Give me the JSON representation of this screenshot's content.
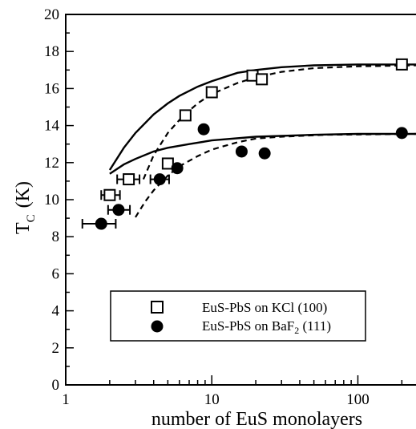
{
  "chart_data": {
    "type": "scatter",
    "x_scale": "log",
    "xlim": [
      1,
      250
    ],
    "ylim": [
      0,
      20
    ],
    "xlabel": "number of EuS monolayers",
    "ylabel_main": "T",
    "ylabel_sub": "C",
    "ylabel_unit": "(K)",
    "x_ticks": [
      {
        "value": 1,
        "label": "1"
      },
      {
        "value": 10,
        "label": "10"
      },
      {
        "value": 100,
        "label": "100"
      }
    ],
    "y_ticks": [
      0,
      2,
      4,
      6,
      8,
      10,
      12,
      14,
      16,
      18,
      20
    ],
    "grid": false,
    "legend_placement": "lower-right",
    "series": [
      {
        "name": "EuS-PbS on KCl (100)",
        "marker": "open-square",
        "points": [
          {
            "x": 2.0,
            "y": 10.25,
            "xerr": [
              1.75,
              2.35
            ]
          },
          {
            "x": 2.7,
            "y": 11.1,
            "xerr": [
              2.25,
              3.2
            ]
          },
          {
            "x": 5.0,
            "y": 11.95
          },
          {
            "x": 6.6,
            "y": 14.55
          },
          {
            "x": 10,
            "y": 15.8
          },
          {
            "x": 19,
            "y": 16.7
          },
          {
            "x": 22,
            "y": 16.5
          },
          {
            "x": 200,
            "y": 17.3
          }
        ]
      },
      {
        "name_prefix": "EuS-PbS on BaF",
        "name_sub": "2",
        "name_suffix": " (111)",
        "marker": "filled-circle",
        "points": [
          {
            "x": 1.75,
            "y": 8.7,
            "xerr": [
              1.3,
              2.2
            ]
          },
          {
            "x": 2.3,
            "y": 9.45,
            "xerr": [
              1.95,
              2.75
            ]
          },
          {
            "x": 4.4,
            "y": 11.1,
            "xerr": [
              3.8,
              5.1
            ]
          },
          {
            "x": 5.8,
            "y": 11.7
          },
          {
            "x": 8.8,
            "y": 13.8
          },
          {
            "x": 16,
            "y": 12.6
          },
          {
            "x": 23,
            "y": 12.5
          },
          {
            "x": 200,
            "y": 13.6
          }
        ]
      }
    ],
    "curves": [
      {
        "style": "solid",
        "points": [
          [
            2.0,
            11.6
          ],
          [
            2.5,
            12.8
          ],
          [
            3,
            13.6
          ],
          [
            4,
            14.6
          ],
          [
            5,
            15.2
          ],
          [
            6,
            15.6
          ],
          [
            8,
            16.1
          ],
          [
            10,
            16.4
          ],
          [
            15,
            16.85
          ],
          [
            20,
            17.0
          ],
          [
            30,
            17.15
          ],
          [
            50,
            17.25
          ],
          [
            100,
            17.3
          ],
          [
            250,
            17.3
          ]
        ]
      },
      {
        "style": "dashed",
        "points": [
          [
            3.4,
            11.1
          ],
          [
            4,
            12.4
          ],
          [
            5,
            13.6
          ],
          [
            6,
            14.3
          ],
          [
            7,
            14.8
          ],
          [
            8,
            15.2
          ],
          [
            10,
            15.7
          ],
          [
            15,
            16.3
          ],
          [
            20,
            16.6
          ],
          [
            30,
            16.9
          ],
          [
            50,
            17.1
          ],
          [
            100,
            17.2
          ],
          [
            250,
            17.25
          ]
        ]
      },
      {
        "style": "solid",
        "points": [
          [
            2.0,
            11.4
          ],
          [
            2.5,
            11.9
          ],
          [
            3,
            12.2
          ],
          [
            4,
            12.6
          ],
          [
            5,
            12.8
          ],
          [
            7,
            13.0
          ],
          [
            10,
            13.2
          ],
          [
            20,
            13.4
          ],
          [
            50,
            13.5
          ],
          [
            100,
            13.55
          ],
          [
            250,
            13.55
          ]
        ]
      },
      {
        "style": "dashed",
        "points": [
          [
            3.0,
            9.05
          ],
          [
            3.5,
            9.9
          ],
          [
            4,
            10.5
          ],
          [
            5,
            11.3
          ],
          [
            6,
            11.8
          ],
          [
            8,
            12.35
          ],
          [
            10,
            12.7
          ],
          [
            15,
            13.1
          ],
          [
            20,
            13.3
          ],
          [
            30,
            13.4
          ],
          [
            60,
            13.5
          ],
          [
            250,
            13.55
          ]
        ]
      }
    ]
  }
}
